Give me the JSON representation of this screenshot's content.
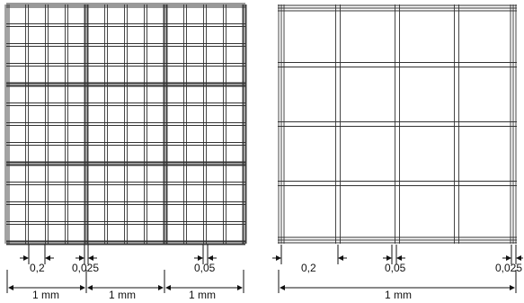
{
  "left_panel": {
    "labels": {
      "small_square": "0,2",
      "triple_gap": "0,025",
      "double_gap": "0,05",
      "span_a": "1 mm",
      "span_b": "1 mm",
      "span_c": "1 mm"
    }
  },
  "right_panel": {
    "labels": {
      "small_square": "0,2",
      "double_gap": "0,05",
      "triple_gap": "0,025",
      "span": "1 mm"
    }
  },
  "colors": {
    "ink": "#111111",
    "grid": "#333333",
    "background": "#ffffff"
  }
}
